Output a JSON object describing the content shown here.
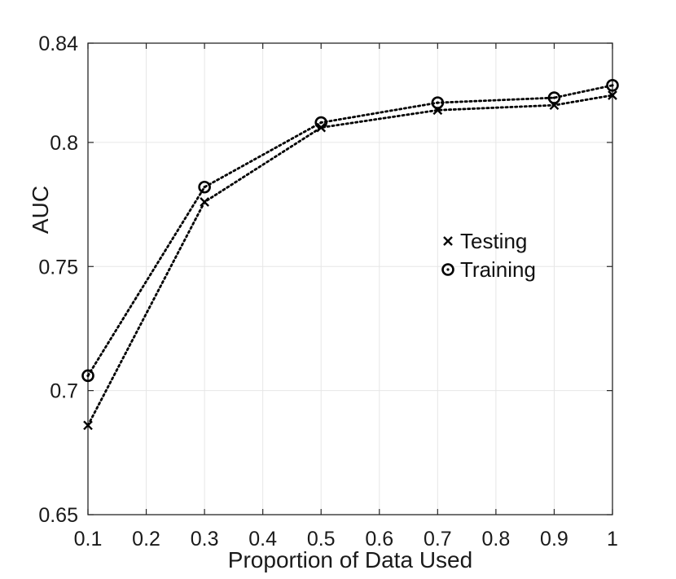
{
  "chart_data": {
    "type": "line",
    "title": "",
    "xlabel": "Proportion of Data Used",
    "ylabel": "AUC",
    "xlim": [
      0.1,
      1.0
    ],
    "ylim": [
      0.65,
      0.84
    ],
    "x_ticks": [
      {
        "value": 0.1,
        "label": "0.1"
      },
      {
        "value": 0.2,
        "label": "0.2"
      },
      {
        "value": 0.3,
        "label": "0.3"
      },
      {
        "value": 0.4,
        "label": "0.4"
      },
      {
        "value": 0.5,
        "label": "0.5"
      },
      {
        "value": 0.6,
        "label": "0.6"
      },
      {
        "value": 0.7,
        "label": "0.7"
      },
      {
        "value": 0.8,
        "label": "0.8"
      },
      {
        "value": 0.9,
        "label": "0.9"
      },
      {
        "value": 1.0,
        "label": "1"
      }
    ],
    "y_ticks": [
      {
        "value": 0.65,
        "label": "0.65"
      },
      {
        "value": 0.7,
        "label": "0.7"
      },
      {
        "value": 0.75,
        "label": "0.75"
      },
      {
        "value": 0.8,
        "label": "0.8"
      },
      {
        "value": 0.84,
        "label": "0.84"
      }
    ],
    "grid": true,
    "legend_position": "right-middle",
    "series": [
      {
        "name": "Testing",
        "marker": "x",
        "line_style": "dotted",
        "color": "#000000",
        "x": [
          0.1,
          0.3,
          0.5,
          0.7,
          0.9,
          1.0
        ],
        "values": [
          0.686,
          0.776,
          0.806,
          0.813,
          0.815,
          0.819
        ]
      },
      {
        "name": "Training",
        "marker": "o",
        "line_style": "dotted",
        "color": "#000000",
        "x": [
          0.1,
          0.3,
          0.5,
          0.7,
          0.9,
          1.0
        ],
        "values": [
          0.706,
          0.782,
          0.808,
          0.816,
          0.818,
          0.823
        ]
      }
    ]
  },
  "colors": {
    "grid": "#e6e6e6",
    "axis": "#262626",
    "background": "#ffffff"
  }
}
